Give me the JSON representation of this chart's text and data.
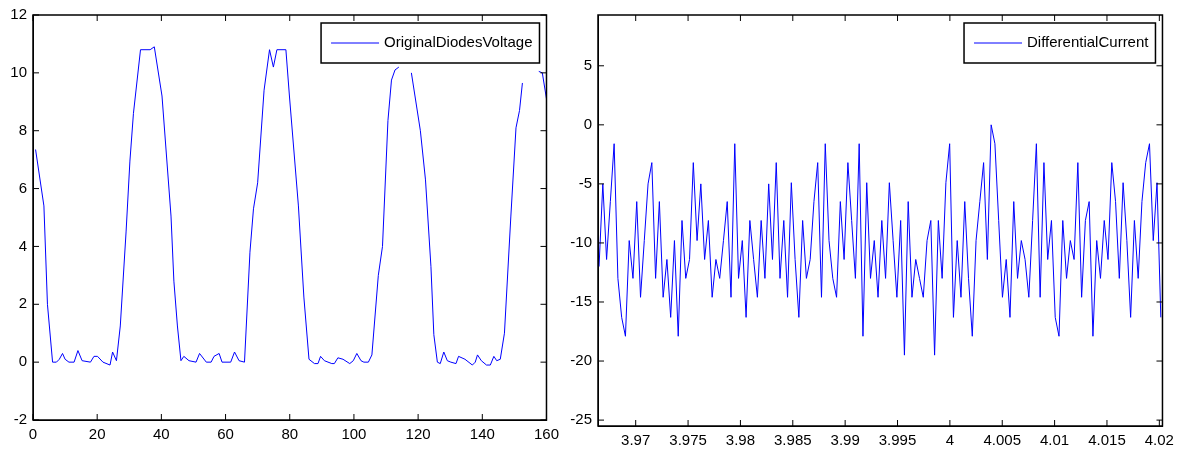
{
  "chart_data": [
    {
      "type": "line",
      "x": [
        0.8,
        3.4,
        4.5,
        6.1,
        7.3,
        8.2,
        9.2,
        10,
        11.2,
        12.8,
        14,
        15.3,
        17.9,
        19,
        20.1,
        21.8,
        24,
        24.8,
        26,
        27.2,
        29,
        30.2,
        31.3,
        33.5,
        36.5,
        37.8,
        40.2,
        43,
        43.9,
        45,
        46.1,
        47,
        48.6,
        50.8,
        51.9,
        54,
        55.5,
        56.4,
        58,
        58.9,
        61.6,
        62.8,
        64.2,
        65.9,
        67.6,
        68.7,
        70,
        72,
        73.7,
        74.9,
        76,
        78.8,
        79.9,
        82.7,
        84.4,
        86,
        87.7,
        88.8,
        89.6,
        90.8,
        93.1,
        93.9,
        95,
        96.6,
        98.7,
        99.8,
        100.9,
        102.2,
        103.1,
        104.5,
        105.6,
        107.6,
        108.9,
        110.6,
        111.7,
        112.8,
        114,
        116,
        117.9,
        120.7,
        122.3,
        124,
        124.9,
        126,
        126.9,
        128,
        129.1,
        130.2,
        131.8,
        132.6,
        134.6,
        136.9,
        137.8,
        138.5,
        139.7,
        141.3,
        142.5,
        143.6,
        144.5,
        145.6,
        146.9,
        148.9,
        150.5,
        151.6,
        152.5,
        154.5,
        157.6,
        158.7,
        160
      ],
      "series": [
        {
          "name": "OriginalDiodesVoltage",
          "color": "#0000ff",
          "values": [
            7.35,
            5.4,
            2,
            0,
            0,
            0.1,
            0.3,
            0.1,
            0,
            0,
            0.4,
            0.05,
            0,
            0.2,
            0.2,
            0,
            -0.1,
            0.35,
            0.05,
            1.25,
            4.5,
            6.95,
            8.6,
            10.8,
            10.8,
            10.9,
            9.2,
            5.05,
            2.8,
            1.25,
            0.05,
            0.2,
            0.05,
            0,
            0.3,
            0,
            0,
            0.2,
            0.3,
            0,
            0,
            0.35,
            0.05,
            0,
            3.8,
            5.3,
            6.2,
            9.4,
            10.8,
            10.2,
            10.8,
            10.8,
            9.2,
            5.4,
            2.25,
            0.1,
            -0.05,
            -0.05,
            0.2,
            0.05,
            -0.05,
            -0.05,
            0.15,
            0.1,
            -0.05,
            0.05,
            0.3,
            0.05,
            0,
            0,
            0.25,
            3,
            4,
            8.35,
            9.75,
            10.1,
            10.2,
            null,
            10,
            8,
            6.3,
            3.3,
            0.95,
            0,
            -0.05,
            0.35,
            0.05,
            0,
            -0.05,
            0.2,
            0.1,
            -0.1,
            0,
            0.25,
            0.05,
            -0.1,
            -0.1,
            0.2,
            0.05,
            0.1,
            1,
            5.05,
            8.1,
            8.7,
            9.65,
            null,
            10.05,
            10,
            9.1
          ]
        }
      ],
      "xlim": [
        0,
        160
      ],
      "ylim": [
        -2,
        12
      ],
      "xticks": [
        0,
        20,
        40,
        60,
        80,
        100,
        120,
        140,
        160
      ],
      "yticks": [
        -2,
        0,
        2,
        4,
        6,
        8,
        10,
        12
      ],
      "legend": "top right",
      "grid": false,
      "marker": "none",
      "line_style": "solid"
    },
    {
      "type": "line",
      "x": [
        3.9665,
        3.96686,
        3.96722,
        3.96758,
        3.96794,
        3.9683,
        3.96866,
        3.96902,
        3.96938,
        3.96974,
        3.9701,
        3.97046,
        3.97082,
        3.97118,
        3.97154,
        3.9719,
        3.97226,
        3.97262,
        3.97298,
        3.97334,
        3.9737,
        3.97406,
        3.97442,
        3.97478,
        3.97514,
        3.9755,
        3.97586,
        3.97622,
        3.97658,
        3.97694,
        3.9773,
        3.97766,
        3.97802,
        3.97838,
        3.97874,
        3.9791,
        3.97946,
        3.97982,
        3.98018,
        3.98054,
        3.9809,
        3.98126,
        3.98162,
        3.98198,
        3.98234,
        3.9827,
        3.98306,
        3.98342,
        3.98378,
        3.98414,
        3.9845,
        3.98486,
        3.98522,
        3.98558,
        3.98594,
        3.9863,
        3.98666,
        3.98702,
        3.98738,
        3.98774,
        3.9881,
        3.98846,
        3.98882,
        3.98918,
        3.98954,
        3.9899,
        3.99026,
        3.99062,
        3.99098,
        3.99134,
        3.9917,
        3.99206,
        3.99242,
        3.99278,
        3.99314,
        3.9935,
        3.99386,
        3.99422,
        3.99458,
        3.99494,
        3.9953,
        3.99566,
        3.99602,
        3.99638,
        3.99674,
        3.9971,
        3.99746,
        3.99782,
        3.99818,
        3.99854,
        3.9989,
        3.99926,
        3.99962,
        3.99998,
        4.00034,
        4.0007,
        4.00106,
        4.00142,
        4.00178,
        4.00214,
        4.0025,
        4.00286,
        4.00322,
        4.00358,
        4.00394,
        4.0043,
        4.00466,
        4.00502,
        4.00538,
        4.00574,
        4.0061,
        4.00646,
        4.00682,
        4.00718,
        4.00754,
        4.0079,
        4.00826,
        4.00862,
        4.00898,
        4.00934,
        4.0097,
        4.01006,
        4.01042,
        4.01078,
        4.01114,
        4.0115,
        4.01186,
        4.01222,
        4.01258,
        4.01294,
        4.0133,
        4.01366,
        4.01402,
        4.01438,
        4.01474,
        4.0151,
        4.01546,
        4.01582,
        4.01618,
        4.01654,
        4.0169,
        4.01726,
        4.01762,
        4.01798,
        4.01834,
        4.0187,
        4.01906,
        4.01942,
        4.01978,
        4.02014
      ],
      "series": [
        {
          "name": "DifferentialCurrent",
          "color": "#0000ff",
          "values": [
            -12,
            -5,
            -11.4,
            -6.5,
            -1.6,
            -13,
            -16.3,
            -17.9,
            -9.8,
            -13,
            -6.5,
            -14.6,
            -9.8,
            -5,
            -3.2,
            -13,
            -6.5,
            -14.6,
            -11.4,
            -16.3,
            -9.8,
            -17.9,
            -8.1,
            -13,
            -11.4,
            -3.2,
            -9.8,
            -5,
            -11.4,
            -8.1,
            -14.6,
            -11.4,
            -13,
            -9.8,
            -6.5,
            -14.6,
            -1.6,
            -13,
            -9.8,
            -16.3,
            -8.1,
            -11.4,
            -14.6,
            -8.1,
            -13,
            -5,
            -11.4,
            -3.2,
            -13,
            -8.1,
            -14.6,
            -4.9,
            -11.4,
            -16.3,
            -8.1,
            -13,
            -11.4,
            -6.5,
            -3.2,
            -14.6,
            -1.6,
            -9.8,
            -13,
            -14.6,
            -6.5,
            -11.4,
            -3.2,
            -8.1,
            -13,
            -1.6,
            -17.9,
            -4.9,
            -13,
            -9.8,
            -14.6,
            -8.1,
            -13,
            -4.9,
            -9.8,
            -14.6,
            -8.1,
            -19.5,
            -6.5,
            -14.6,
            -11.4,
            -13,
            -14.6,
            -9.8,
            -8.1,
            -19.5,
            -8.1,
            -13,
            -4.9,
            -1.6,
            -16.3,
            -9.8,
            -14.6,
            -6.5,
            -13,
            -17.9,
            -9.8,
            -6.5,
            -3.2,
            -11.4,
            0,
            -1.6,
            -8.1,
            -14.6,
            -11.4,
            -16.3,
            -6.5,
            -13,
            -9.8,
            -11.4,
            -14.6,
            -8.1,
            -1.6,
            -14.6,
            -3.2,
            -11.4,
            -8.1,
            -16.3,
            -17.9,
            -8.1,
            -13,
            -9.8,
            -11.4,
            -3.2,
            -14.6,
            -8.1,
            -6.5,
            -17.9,
            -9.8,
            -13,
            -8.1,
            -11.4,
            -3.2,
            -6.5,
            -13,
            -4.9,
            -9.8,
            -16.3,
            -8.1,
            -13,
            -6.5,
            -3.2,
            -1.6,
            -9.8,
            -4.9,
            -16.3
          ]
        }
      ],
      "xlim": [
        3.9664,
        4.0203
      ],
      "ylim": [
        -25.5,
        9.3
      ],
      "xticks": [
        3.97,
        3.975,
        3.98,
        3.985,
        3.99,
        3.995,
        4,
        4.005,
        4.01,
        4.015,
        4.02
      ],
      "yticks": [
        -25,
        -20,
        -15,
        -10,
        -5,
        0,
        5
      ],
      "legend": "top right",
      "grid": false,
      "marker": "none",
      "line_style": "solid"
    }
  ]
}
